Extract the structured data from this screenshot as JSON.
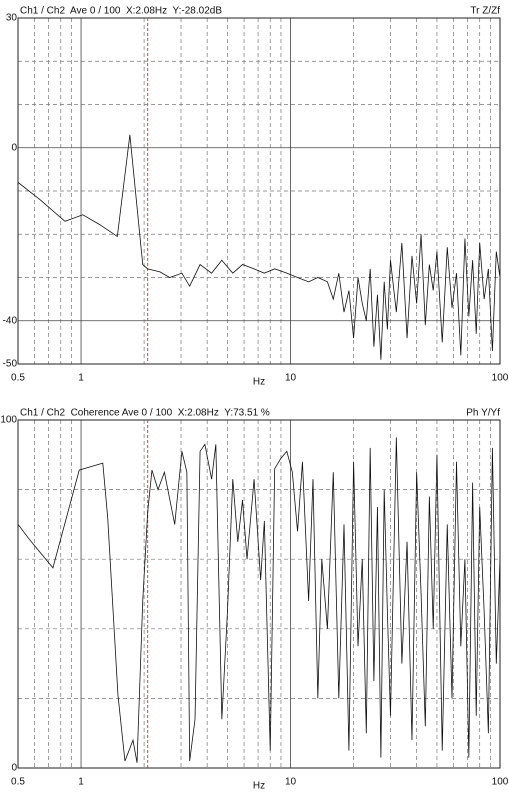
{
  "chart_data": [
    {
      "type": "line",
      "title": "Ch1 / Ch2  Ave 0 / 100  X:2.08Hz  Y:-28.02dB",
      "mode_label": "Tr Z/Zf",
      "xlabel": "Hz",
      "log_x": true,
      "xlim": [
        0.5,
        100
      ],
      "xticks": [
        0.5,
        1,
        10,
        100
      ],
      "xminorticks": [
        0.6,
        0.7,
        0.8,
        0.9,
        2,
        3,
        4,
        5,
        6,
        7,
        8,
        9,
        20,
        30,
        40,
        50,
        60,
        70,
        80,
        90
      ],
      "ylim": [
        -50,
        30
      ],
      "yticks": [
        30,
        0,
        -40,
        -50
      ],
      "yminorticks": [
        20,
        10,
        -10,
        -20,
        -30
      ],
      "cursor_x": 2.08,
      "cursor_color": "#e0403a",
      "color": "#111111",
      "grid": true,
      "x": [
        0.5,
        0.637,
        0.838,
        1.02,
        1.23,
        1.49,
        1.71,
        1.97,
        2.08,
        2.38,
        2.65,
        3.03,
        3.3,
        3.7,
        4.2,
        4.7,
        5.3,
        5.9,
        6.7,
        7.5,
        8.4,
        9.6,
        10.8,
        12.2,
        13.5,
        15,
        16,
        17,
        18,
        19,
        20,
        21,
        22,
        23,
        24,
        25,
        26,
        27,
        28,
        29,
        30,
        32,
        34,
        36,
        38,
        40,
        42,
        44,
        46,
        48,
        50,
        53,
        56,
        59,
        62,
        65,
        68,
        71,
        74,
        77,
        80,
        84,
        88,
        92,
        96,
        100
      ],
      "values": [
        -8,
        -12,
        -17,
        -15.5,
        -17.8,
        -20.5,
        3,
        -27,
        -28.02,
        -28.7,
        -30,
        -29,
        -32,
        -27,
        -29,
        -26,
        -29,
        -27,
        -28,
        -29,
        -28,
        -29,
        -30,
        -31,
        -30,
        -31,
        -35,
        -29,
        -38,
        -33,
        -44,
        -30,
        -36,
        -40,
        -28,
        -46,
        -34,
        -49,
        -31,
        -42,
        -26,
        -38,
        -22,
        -44,
        -25,
        -36,
        -20,
        -41,
        -27,
        -33,
        -24,
        -45,
        -23,
        -37,
        -29,
        -48,
        -21,
        -39,
        -26,
        -43,
        -22,
        -35,
        -28,
        -47,
        -24,
        -30
      ]
    },
    {
      "type": "line",
      "title": "Ch1 / Ch2  Coherence Ave 0 / 100  X:2.08Hz  Y:73.51 %",
      "mode_label": "Ph Y/Yf",
      "xlabel": "Hz",
      "log_x": true,
      "xlim": [
        0.5,
        100
      ],
      "xticks": [
        0.5,
        1,
        10,
        100
      ],
      "xminorticks": [
        0.6,
        0.7,
        0.8,
        0.9,
        2,
        3,
        4,
        5,
        6,
        7,
        8,
        9,
        20,
        30,
        40,
        50,
        60,
        70,
        80,
        90
      ],
      "ylim": [
        0,
        100
      ],
      "yticks": [
        100,
        0
      ],
      "yminorticks": [
        80,
        60,
        40,
        20
      ],
      "cursor_x": 2.08,
      "cursor_color": "#e0403a",
      "color": "#111111",
      "grid": true,
      "x": [
        0.5,
        0.57,
        0.734,
        0.98,
        1.27,
        1.34,
        1.5,
        1.62,
        1.77,
        1.85,
        1.97,
        2.08,
        2.18,
        2.33,
        2.5,
        2.8,
        3.03,
        3.2,
        3.3,
        3.5,
        3.7,
        3.9,
        4.2,
        4.4,
        4.7,
        5.0,
        5.3,
        5.6,
        5.9,
        6.2,
        6.7,
        7.2,
        7.5,
        8.0,
        8.4,
        9.0,
        9.6,
        10.2,
        10.8,
        11.4,
        12.2,
        12.8,
        13.5,
        14.1,
        15,
        16,
        17,
        18,
        19,
        20,
        21,
        22,
        23,
        24,
        25,
        26,
        27,
        28,
        29,
        30,
        32,
        34,
        36,
        38,
        40,
        42,
        44,
        46,
        48,
        50,
        53,
        56,
        59,
        62,
        65,
        68,
        71,
        74,
        77,
        80,
        84,
        88,
        92,
        96,
        100
      ],
      "values": [
        70,
        65.5,
        57.5,
        85.6,
        87.6,
        72,
        21,
        2,
        8,
        1.5,
        48,
        73.51,
        85.6,
        80,
        85,
        70,
        91,
        85,
        2,
        14,
        91,
        93,
        83,
        93,
        14,
        45,
        83,
        65,
        77,
        60,
        83,
        54,
        71,
        5,
        86,
        89,
        91,
        85,
        68,
        88,
        48,
        83,
        20,
        60,
        40,
        85,
        20,
        70,
        5,
        88,
        35,
        60,
        10,
        92,
        25,
        75,
        3,
        80,
        45,
        15,
        95,
        30,
        65,
        8,
        85,
        50,
        12,
        78,
        40,
        90,
        5,
        70,
        20,
        88,
        35,
        60,
        3,
        82,
        15,
        75,
        45,
        10,
        92,
        30,
        60
      ]
    }
  ]
}
